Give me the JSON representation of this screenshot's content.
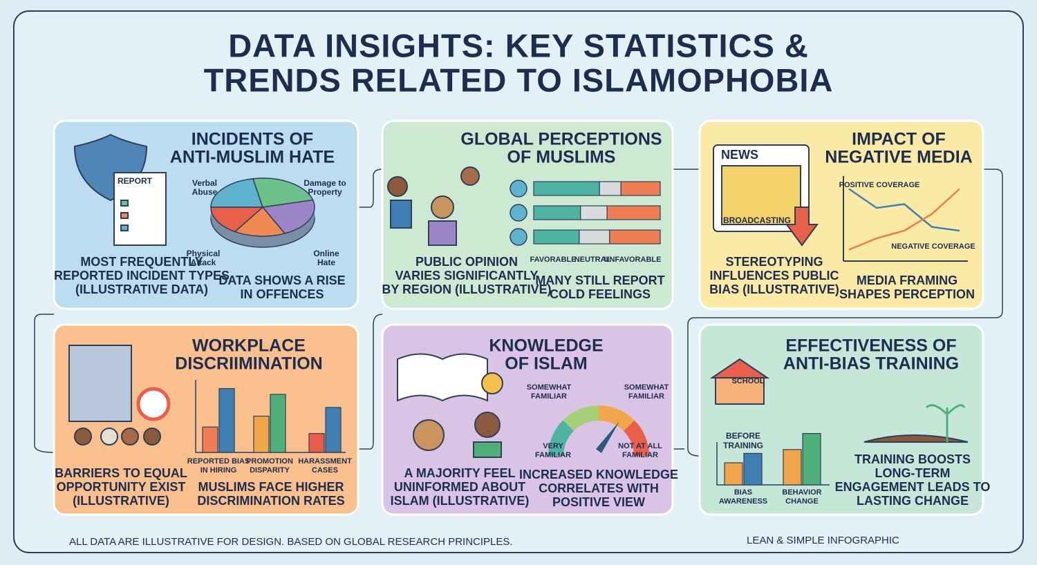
{
  "header": {
    "title_lines": [
      "DATA INSIGHTS: KEY STATISTICS &",
      "TRENDS RELATED TO ISLAMOPHOBIA"
    ]
  },
  "panels": [
    {
      "title_lines": [
        "INCIDENTS OF",
        "ANTI-MUSLIM HATE"
      ],
      "icon_label": "REPORT",
      "chart": {
        "type": "pie",
        "categories": [
          [
            "Verbal",
            "Abuse"
          ],
          [
            "Damage to",
            "Property"
          ],
          [
            "Online",
            "Hate"
          ],
          null,
          [
            "Physical",
            "Attack"
          ]
        ],
        "values": [
          22,
          24,
          22,
          16,
          16
        ],
        "colors": [
          "#5fb3cf",
          "#6cc08a",
          "#9b85c6",
          "#f08a52",
          "#e8604c"
        ]
      },
      "caption_left": [
        "MOST FREQUENTLY",
        "REPORTED INCIDENT TYPES",
        "(ILLUSTRATIVE DATA)"
      ],
      "caption_right": [
        "DATA SHOWS A RISE",
        "IN OFFENCES"
      ]
    },
    {
      "title_lines": [
        "GLOBAL PERCEPTIONS",
        "OF MUSLIMS"
      ],
      "chart": {
        "type": "stacked-bar",
        "xlim": [
          0,
          100
        ],
        "series": [
          {
            "name": "FAVORABLE",
            "color": "#4fb3a4",
            "values": [
              52,
              37,
              36
            ]
          },
          {
            "name": "NEUTRAL",
            "color": "#d9dcdc",
            "values": [
              17,
              21,
              24
            ]
          },
          {
            "name": "UNFAVORABLE",
            "color": "#ef7f52",
            "values": [
              31,
              42,
              40
            ]
          }
        ]
      },
      "caption_left": [
        "PUBLIC OPINION",
        "VARIES SIGNIFICANTLY",
        "BY REGION (ILLUSTRATIVE)"
      ],
      "caption_right": [
        "MANY STILL REPORT",
        "COLD FEELINGS"
      ]
    },
    {
      "title_lines": [
        "IMPACT OF",
        "NEGATIVE MEDIA"
      ],
      "icon_labels": [
        "NEWS",
        "BROADCASTING"
      ],
      "chart": {
        "type": "line",
        "ylim": [
          0,
          100
        ],
        "series": [
          {
            "name": "POSITIVE COVERAGE",
            "color": "#3f7fb4",
            "values": [
              95,
              70,
              75,
              45,
              40
            ]
          },
          {
            "name": "NEGATIVE COVERAGE",
            "color": "#ee7a45",
            "values": [
              15,
              30,
              40,
              62,
              95
            ]
          }
        ]
      },
      "caption_left": [
        "STEREOTYPING",
        "INFLUENCES PUBLIC",
        "BIAS (ILLUSTRATIVE)"
      ],
      "caption_right": [
        "MEDIA FRAMING",
        "SHAPES PERCEPTION"
      ]
    },
    {
      "title_lines": [
        "WORKPLACE",
        "DISCRIIMINATION"
      ],
      "chart": {
        "type": "bar",
        "ylim": [
          0,
          100
        ],
        "categories": [
          [
            "REPORTED BIAS",
            "IN HIRING"
          ],
          [
            "PROMOTION",
            "DISPARITY"
          ],
          [
            "HARASSMENT",
            "CASES"
          ]
        ],
        "series": [
          {
            "colors": [
              "#f07d55",
              "#f2a64a",
              "#e85c4a"
            ],
            "values": [
              35,
              50,
              26
            ]
          },
          {
            "colors": [
              "#3f7fb4",
              "#4fb07a",
              "#3f7fb4"
            ],
            "values": [
              88,
              80,
              62
            ]
          }
        ]
      },
      "caption_left": [
        "BARRIERS TO EQUAL",
        "OPPORTUNITY EXIST",
        "(ILLUSTRATIVE)"
      ],
      "caption_right": [
        "MUSLIMS FACE HIGHER",
        "DISCRIMINATION RATES"
      ]
    },
    {
      "title_lines": [
        "KNOWLEDGE",
        "OF ISLAM"
      ],
      "gauge_labels": [
        [
          "VERY",
          "FAMILIAR"
        ],
        [
          "SOMEWHAT",
          "FAMILIAR"
        ],
        [
          "SOMEWHAT",
          "FAMILIAR"
        ],
        [
          "NOT AT ALL",
          "FAMILIAR"
        ]
      ],
      "caption_left": [
        "A MAJORITY FEEL",
        "UNINFORMED ABOUT",
        "ISLAM (ILLUSTRATIVE)"
      ],
      "caption_right": [
        "INCREASED KNOWLEDGE",
        "CORRELATES WITH",
        "POSITIVE VIEW"
      ]
    },
    {
      "title_lines": [
        "EFFECTIVENESS OF",
        "ANTI-BIAS TRAINING"
      ],
      "icon_label": "SCHOOL",
      "chart": {
        "type": "bar",
        "ylim": [
          0,
          100
        ],
        "annotation": [
          "BEFORE",
          "TRAINING"
        ],
        "categories": [
          [
            "BIAS",
            "AWARENESS"
          ],
          [
            "BEHAVIOR",
            "CHANGE"
          ]
        ],
        "series": [
          {
            "colors": [
              "#f2a64a",
              "#f2a64a"
            ],
            "values": [
              40,
              64
            ]
          },
          {
            "colors": [
              "#3f7fb4",
              "#4fb07a"
            ],
            "values": [
              57,
              93
            ]
          }
        ]
      },
      "caption_right": [
        "TRAINING BOOSTS",
        "LONG-TERM",
        "ENGAGEMENT LEADS TO",
        "LASTING CHANGE"
      ]
    }
  ],
  "footer": {
    "note": "ALL DATA ARE ILLUSTRATIVE FOR DESIGN. BASED ON GLOBAL RESEARCH PRINCIPLES.",
    "tag": "LEAN & SIMPLE INFOGRAPHIC"
  }
}
